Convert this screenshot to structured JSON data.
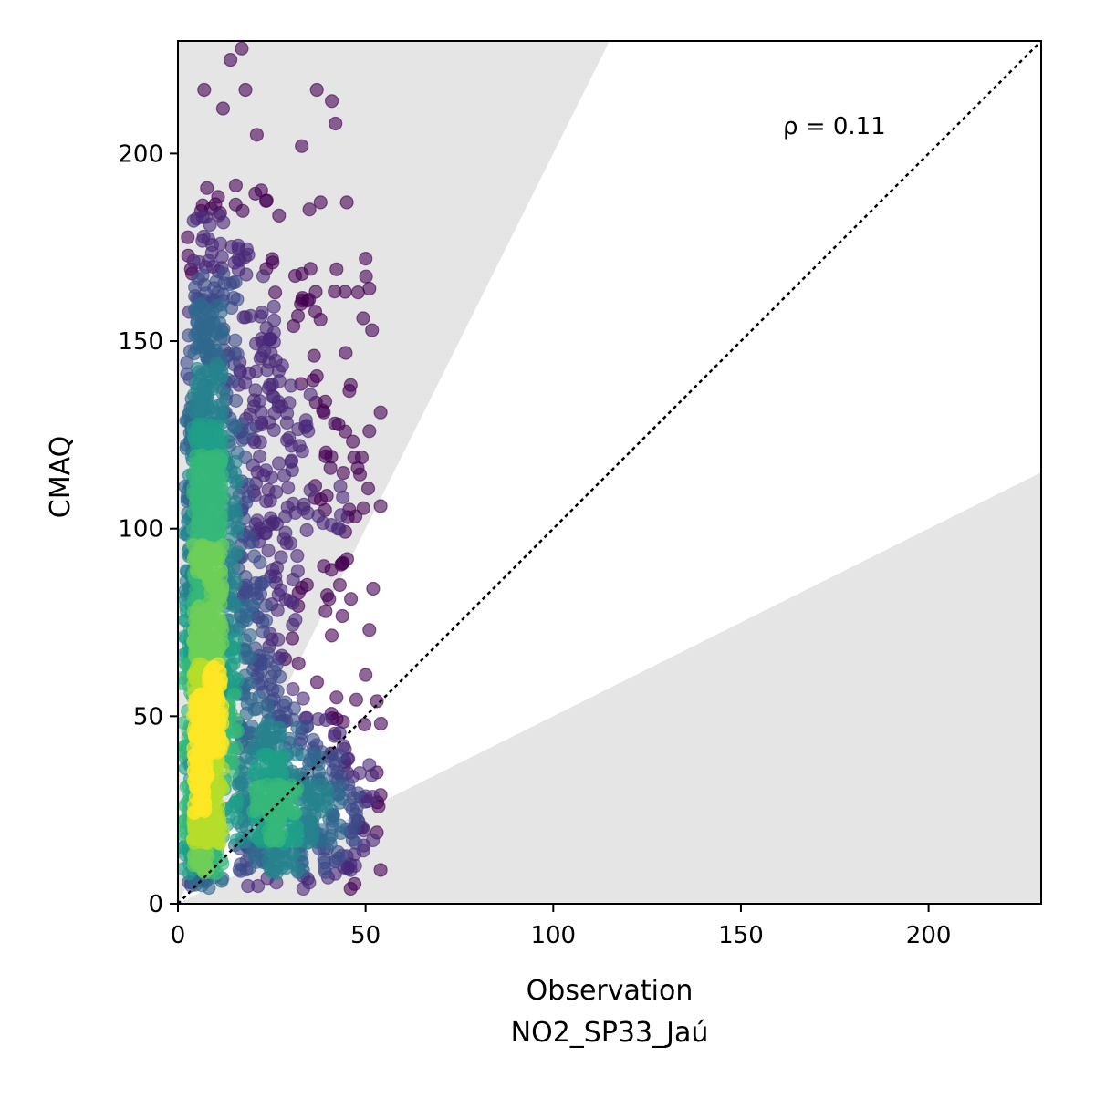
{
  "chart_data": {
    "type": "scatter",
    "title": "",
    "xlabel": "Observation",
    "xlabel_sub": "NO2_SP33_Jaú",
    "ylabel": "CMAQ",
    "xlim": [
      0,
      230
    ],
    "ylim": [
      0,
      230
    ],
    "x_ticks": [
      0,
      50,
      100,
      150,
      200
    ],
    "y_ticks": [
      0,
      50,
      100,
      150,
      200
    ],
    "annotation": "ρ = 0.11",
    "reference_line": {
      "slope": 1,
      "style": "dotted",
      "color": "#000000"
    },
    "shaded_region": {
      "description": "factor-of-2 band",
      "upper_slope": 2,
      "lower_slope": 0.5,
      "color": "#e5e5e5"
    },
    "density_colormap": [
      "#440154",
      "#482878",
      "#3e4989",
      "#31688e",
      "#26828e",
      "#1f9e89",
      "#35b779",
      "#6ece58",
      "#b5de2b",
      "#fde725"
    ],
    "point_alpha": 0.6,
    "point_clusters": [
      {
        "x_min": 1,
        "x_max": 13,
        "y_min": 3,
        "y_max": 195,
        "count": 1200,
        "x_mode": 6,
        "y_mode": 15
      },
      {
        "x_min": 5,
        "x_max": 30,
        "y_min": 3,
        "y_max": 200,
        "count": 600,
        "x_mode": 12,
        "y_mode": 60
      },
      {
        "x_min": 15,
        "x_max": 55,
        "y_min": 3,
        "y_max": 60,
        "count": 500,
        "x_mode": 25,
        "y_mode": 20
      },
      {
        "x_min": 20,
        "x_max": 55,
        "y_min": 60,
        "y_max": 190,
        "count": 150,
        "x_mode": 30,
        "y_mode": 100
      }
    ],
    "outliers": [
      {
        "x": 17,
        "y": 228
      },
      {
        "x": 14,
        "y": 225
      },
      {
        "x": 7,
        "y": 217
      },
      {
        "x": 12,
        "y": 212
      },
      {
        "x": 18,
        "y": 217
      },
      {
        "x": 37,
        "y": 217
      },
      {
        "x": 41,
        "y": 214
      },
      {
        "x": 42,
        "y": 208
      },
      {
        "x": 21,
        "y": 205
      },
      {
        "x": 33,
        "y": 202
      },
      {
        "x": 38,
        "y": 187
      },
      {
        "x": 45,
        "y": 187
      },
      {
        "x": 50,
        "y": 172
      },
      {
        "x": 51,
        "y": 164
      },
      {
        "x": 48,
        "y": 163
      },
      {
        "x": 54,
        "y": 131
      },
      {
        "x": 51,
        "y": 126
      },
      {
        "x": 49,
        "y": 119
      },
      {
        "x": 54,
        "y": 106
      },
      {
        "x": 43,
        "y": 100
      },
      {
        "x": 52,
        "y": 84
      },
      {
        "x": 51,
        "y": 73
      },
      {
        "x": 50,
        "y": 61
      },
      {
        "x": 53,
        "y": 54
      },
      {
        "x": 51,
        "y": 37
      },
      {
        "x": 53,
        "y": 35
      },
      {
        "x": 54,
        "y": 29
      },
      {
        "x": 53,
        "y": 19
      },
      {
        "x": 54,
        "y": 9
      },
      {
        "x": 46,
        "y": 4
      },
      {
        "x": 40,
        "y": 7
      }
    ]
  }
}
